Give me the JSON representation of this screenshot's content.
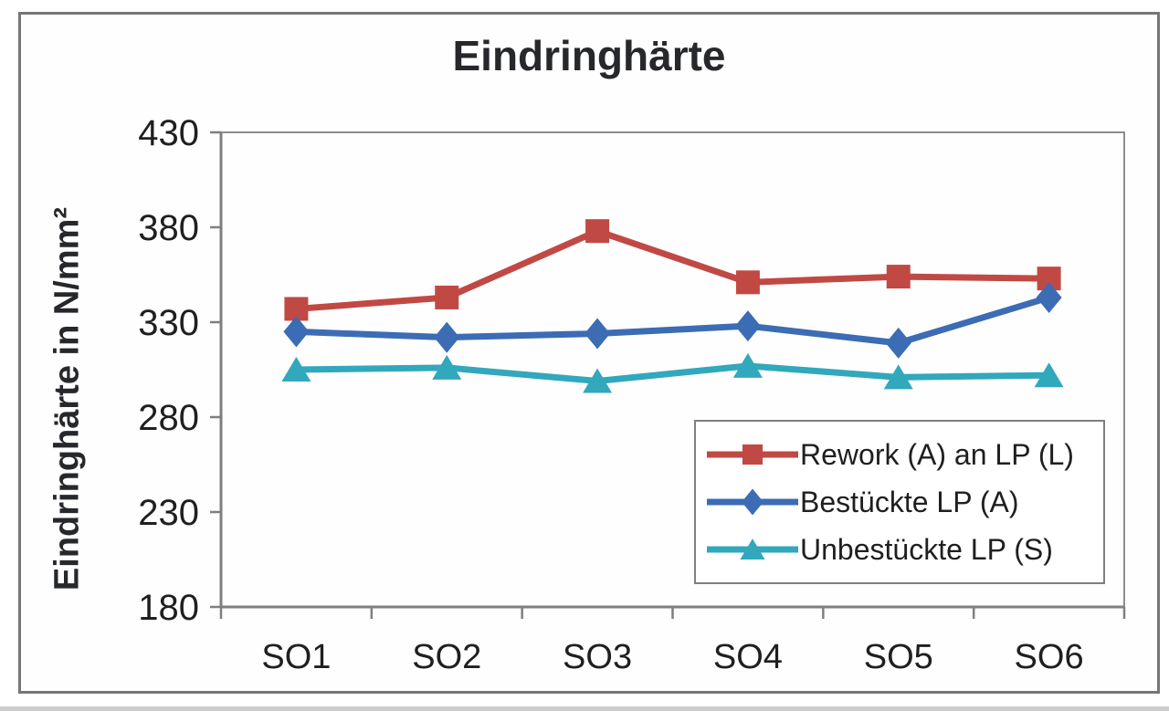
{
  "chart_data": {
    "type": "line",
    "title": "Eindringhärte",
    "ylabel": "Eindringhärte in N/mm²",
    "xlabel": "",
    "categories": [
      "SO1",
      "SO2",
      "SO3",
      "SO4",
      "SO5",
      "SO6"
    ],
    "series": [
      {
        "name": "Rework (A) an LP (L)",
        "color": "#c14944",
        "marker": "square",
        "values": [
          337,
          343,
          378,
          351,
          354,
          353
        ]
      },
      {
        "name": "Bestückte LP (A)",
        "color": "#3c6cb4",
        "marker": "diamond",
        "values": [
          325,
          322,
          324,
          328,
          319,
          343
        ]
      },
      {
        "name": "Unbestückte LP (S)",
        "color": "#31a8bc",
        "marker": "triangle",
        "values": [
          305,
          306,
          299,
          307,
          301,
          302
        ]
      }
    ],
    "ylim": [
      180,
      430
    ],
    "yticks": [
      430,
      380,
      330,
      280,
      230,
      180
    ],
    "grid": false,
    "legend_position": "inside-bottom-right"
  },
  "colors": {
    "axis": "#7f7f7f",
    "plot_border": "#8d8d8d",
    "tick_text": "#1f1f1f",
    "frame_border": "#767676",
    "legend_border": "#7f7f7f"
  }
}
